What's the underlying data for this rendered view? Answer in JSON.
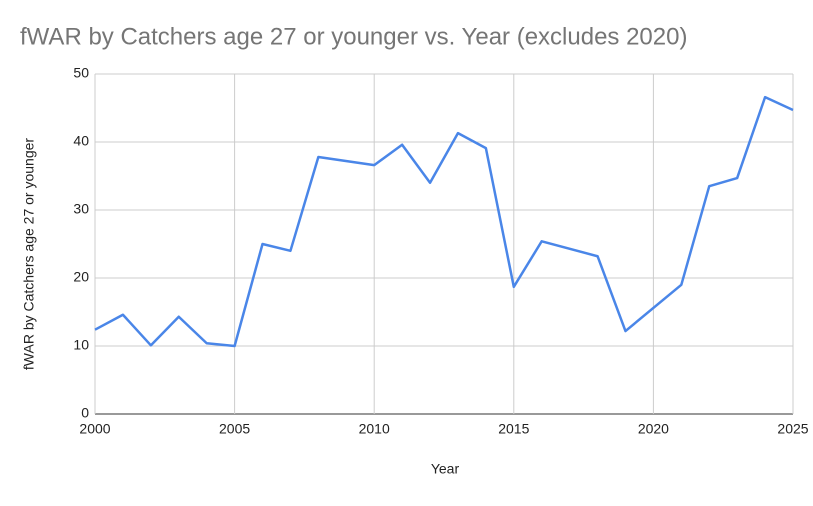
{
  "chart_data": {
    "type": "line",
    "title": "fWAR by Catchers age 27 or younger vs. Year (excludes 2020)",
    "x_label": "Year",
    "y_label": "fWAR by Catchers age 27 or younger",
    "x": [
      2000,
      2001,
      2002,
      2003,
      2004,
      2005,
      2006,
      2007,
      2008,
      2010,
      2011,
      2012,
      2013,
      2014,
      2015,
      2016,
      2018,
      2019,
      2021,
      2022,
      2023,
      2024,
      2025
    ],
    "series": [
      {
        "color": "#4a86e8",
        "values": [
          12.4,
          14.6,
          10.1,
          14.3,
          10.4,
          10.0,
          25.0,
          24.0,
          37.8,
          36.6,
          39.6,
          34.0,
          41.3,
          39.1,
          18.7,
          25.4,
          23.2,
          12.2,
          19.0,
          33.5,
          34.7,
          46.6,
          44.7
        ]
      }
    ],
    "xlim": [
      2000,
      2025
    ],
    "xticks": [
      2000,
      2005,
      2010,
      2015,
      2020,
      2025
    ],
    "ylim": [
      0,
      50
    ],
    "yticks": [
      0,
      10,
      20,
      30,
      40,
      50
    ],
    "grid": true
  }
}
